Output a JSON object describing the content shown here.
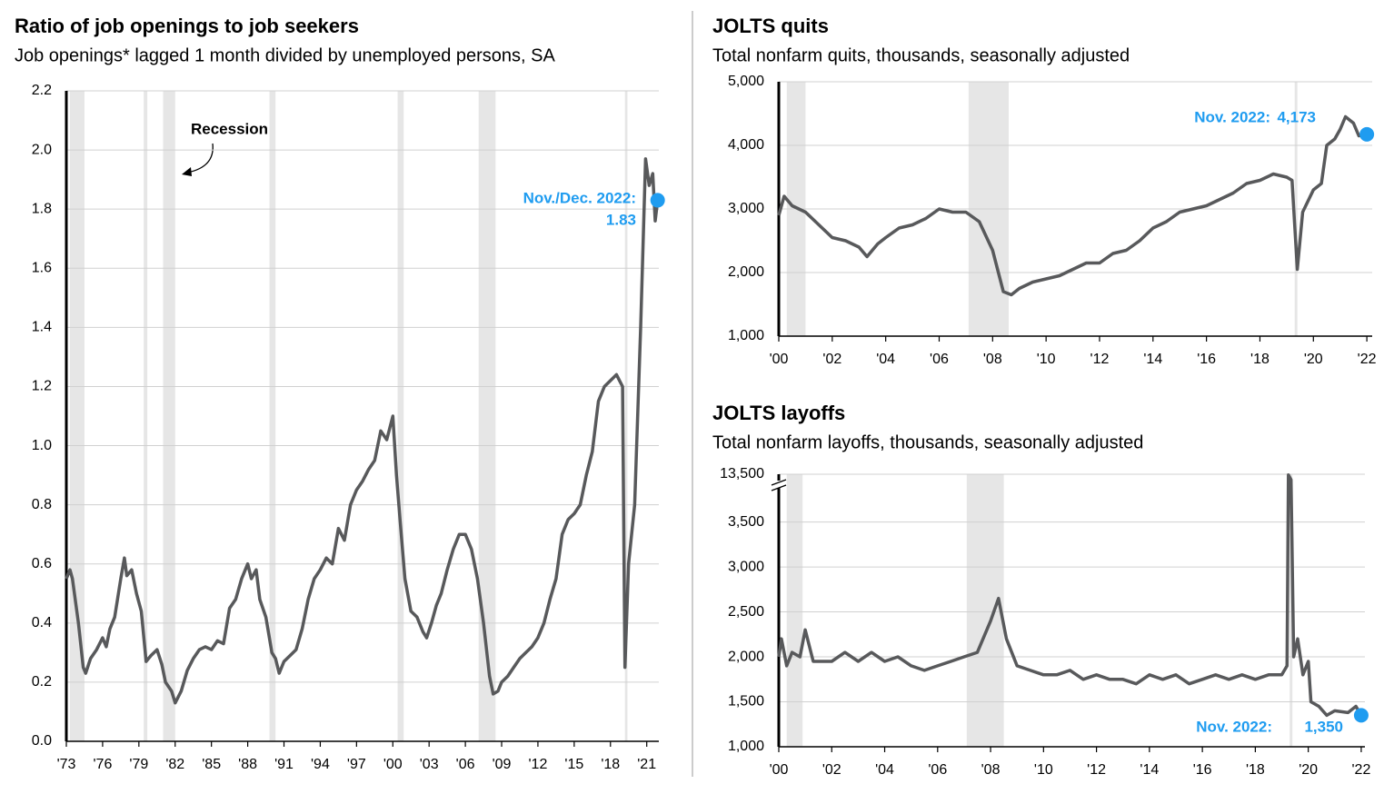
{
  "chart_data": [
    {
      "type": "line",
      "title": "Ratio of job openings to job seekers",
      "subtitle": "Job openings* lagged 1 month divided by unemployed persons, SA",
      "annotation": "Recession",
      "color": "#58595b",
      "recession_color": "#e6e6e6",
      "grid": true,
      "xlim": [
        1973,
        2022
      ],
      "ylim": [
        0,
        2.2
      ],
      "xticks": [
        {
          "value": 1973,
          "label": "'73"
        },
        {
          "value": 1976,
          "label": "'76"
        },
        {
          "value": 1979,
          "label": "'79"
        },
        {
          "value": 1982,
          "label": "'82"
        },
        {
          "value": 1985,
          "label": "'85"
        },
        {
          "value": 1988,
          "label": "'88"
        },
        {
          "value": 1991,
          "label": "'91"
        },
        {
          "value": 1994,
          "label": "'94"
        },
        {
          "value": 1997,
          "label": "'97"
        },
        {
          "value": 2000,
          "label": "'00"
        },
        {
          "value": 2003,
          "label": "'03"
        },
        {
          "value": 2006,
          "label": "'06"
        },
        {
          "value": 2009,
          "label": "'09"
        },
        {
          "value": 2012,
          "label": "'12"
        },
        {
          "value": 2015,
          "label": "'15"
        },
        {
          "value": 2018,
          "label": "'18"
        },
        {
          "value": 2021,
          "label": "'21"
        }
      ],
      "yticks": [
        {
          "value": 0,
          "label": "0.0"
        },
        0.2,
        0.4,
        0.6,
        0.8,
        {
          "value": 1,
          "label": "1.0"
        },
        1.2,
        1.4,
        1.6,
        1.8,
        {
          "value": 2,
          "label": "2.0"
        },
        2.2
      ],
      "recessions": [
        [
          1973.3,
          1974.5
        ],
        [
          1979.4,
          1979.7
        ],
        [
          1981.0,
          1982.0
        ],
        [
          1989.8,
          1990.3
        ],
        [
          2000.4,
          2000.9
        ],
        [
          2007.1,
          2008.5
        ],
        [
          2019.2,
          2019.4
        ]
      ],
      "x": [
        1973.0,
        1973.3,
        1973.5,
        1974.0,
        1974.4,
        1974.6,
        1975.0,
        1975.5,
        1976.0,
        1976.3,
        1976.6,
        1977.0,
        1977.5,
        1977.8,
        1978.0,
        1978.4,
        1978.8,
        1979.2,
        1979.6,
        1980.0,
        1980.5,
        1980.9,
        1981.2,
        1981.7,
        1982.0,
        1982.5,
        1983.0,
        1983.5,
        1984.0,
        1984.5,
        1985.0,
        1985.5,
        1986.0,
        1986.5,
        1987.0,
        1987.5,
        1988.0,
        1988.3,
        1988.7,
        1989.0,
        1989.5,
        1990.0,
        1990.3,
        1990.6,
        1991.0,
        1991.5,
        1992.0,
        1992.5,
        1993.0,
        1993.5,
        1994.0,
        1994.5,
        1995.0,
        1995.5,
        1996.0,
        1996.5,
        1997.0,
        1997.5,
        1998.0,
        1998.5,
        1999.0,
        1999.5,
        2000.0,
        2000.3,
        2000.6,
        2001.0,
        2001.5,
        2002.0,
        2002.5,
        2002.8,
        2003.2,
        2003.6,
        2004.0,
        2004.5,
        2005.0,
        2005.5,
        2006.0,
        2006.5,
        2007.0,
        2007.5,
        2008.0,
        2008.3,
        2008.7,
        2009.0,
        2009.5,
        2010.0,
        2010.5,
        2011.0,
        2011.5,
        2012.0,
        2012.5,
        2013.0,
        2013.5,
        2014.0,
        2014.5,
        2015.0,
        2015.5,
        2016.0,
        2016.5,
        2017.0,
        2017.5,
        2018.0,
        2018.5,
        2019.0,
        2019.2,
        2019.5,
        2020.0,
        2020.5,
        2020.9,
        2021.2,
        2021.5,
        2021.7,
        2021.9
      ],
      "values": [
        0.55,
        0.58,
        0.55,
        0.4,
        0.25,
        0.23,
        0.28,
        0.31,
        0.35,
        0.32,
        0.38,
        0.42,
        0.55,
        0.62,
        0.56,
        0.58,
        0.5,
        0.44,
        0.27,
        0.29,
        0.31,
        0.26,
        0.2,
        0.17,
        0.13,
        0.17,
        0.24,
        0.28,
        0.31,
        0.32,
        0.31,
        0.34,
        0.33,
        0.45,
        0.48,
        0.55,
        0.6,
        0.55,
        0.58,
        0.48,
        0.42,
        0.3,
        0.28,
        0.23,
        0.27,
        0.29,
        0.31,
        0.38,
        0.48,
        0.55,
        0.58,
        0.62,
        0.6,
        0.72,
        0.68,
        0.8,
        0.85,
        0.88,
        0.92,
        0.95,
        1.05,
        1.02,
        1.1,
        0.9,
        0.75,
        0.55,
        0.44,
        0.42,
        0.37,
        0.35,
        0.4,
        0.46,
        0.5,
        0.58,
        0.65,
        0.7,
        0.7,
        0.65,
        0.55,
        0.4,
        0.22,
        0.16,
        0.17,
        0.2,
        0.22,
        0.25,
        0.28,
        0.3,
        0.32,
        0.35,
        0.4,
        0.48,
        0.55,
        0.7,
        0.75,
        0.77,
        0.8,
        0.9,
        0.98,
        1.15,
        1.2,
        1.22,
        1.24,
        1.2,
        0.25,
        0.6,
        0.8,
        1.4,
        1.97,
        1.88,
        1.92,
        1.76,
        1.83
      ],
      "end_point": {
        "label": "Nov./Dec. 2022:",
        "value": 1.83,
        "color": "#1f9cf0"
      }
    },
    {
      "type": "line",
      "title": "JOLTS quits",
      "subtitle": "Total nonfarm quits, thousands, seasonally adjusted",
      "color": "#58595b",
      "recession_color": "#e6e6e6",
      "grid": true,
      "xlim": [
        2000,
        2022.2
      ],
      "ylim": [
        1000,
        5000
      ],
      "xticks": [
        {
          "value": 2000,
          "label": "'00"
        },
        {
          "value": 2002,
          "label": "'02"
        },
        {
          "value": 2004,
          "label": "'04"
        },
        {
          "value": 2006,
          "label": "'06"
        },
        {
          "value": 2008,
          "label": "'08"
        },
        {
          "value": 2010,
          "label": "'10"
        },
        {
          "value": 2012,
          "label": "'12"
        },
        {
          "value": 2014,
          "label": "'14"
        },
        {
          "value": 2016,
          "label": "'16"
        },
        {
          "value": 2018,
          "label": "'18"
        },
        {
          "value": 2020,
          "label": "'20"
        },
        {
          "value": 2022,
          "label": "'22"
        }
      ],
      "yticks": [
        {
          "value": 1000,
          "label": "1,000"
        },
        {
          "value": 2000,
          "label": "2,000"
        },
        {
          "value": 3000,
          "label": "3,000"
        },
        {
          "value": 4000,
          "label": "4,000"
        },
        {
          "value": 5000,
          "label": "5,000"
        }
      ],
      "recessions": [
        [
          2000.3,
          2001.0
        ],
        [
          2007.1,
          2008.6
        ],
        [
          2019.3,
          2019.4
        ]
      ],
      "x": [
        2000.0,
        2000.2,
        2000.5,
        2001.0,
        2001.5,
        2002.0,
        2002.5,
        2003.0,
        2003.3,
        2003.7,
        2004.0,
        2004.5,
        2005.0,
        2005.5,
        2006.0,
        2006.5,
        2007.0,
        2007.5,
        2008.0,
        2008.4,
        2008.7,
        2009.0,
        2009.5,
        2010.0,
        2010.5,
        2011.0,
        2011.5,
        2012.0,
        2012.5,
        2013.0,
        2013.5,
        2014.0,
        2014.5,
        2015.0,
        2015.5,
        2016.0,
        2016.5,
        2017.0,
        2017.5,
        2018.0,
        2018.5,
        2019.0,
        2019.2,
        2019.4,
        2019.6,
        2020.0,
        2020.3,
        2020.5,
        2020.8,
        2021.0,
        2021.2,
        2021.5,
        2021.7,
        2022.0
      ],
      "values": [
        2900,
        3200,
        3050,
        2950,
        2750,
        2550,
        2500,
        2400,
        2250,
        2450,
        2550,
        2700,
        2750,
        2850,
        3000,
        2950,
        2950,
        2800,
        2350,
        1700,
        1650,
        1750,
        1850,
        1900,
        1950,
        2050,
        2150,
        2150,
        2300,
        2350,
        2500,
        2700,
        2800,
        2950,
        3000,
        3050,
        3150,
        3250,
        3400,
        3450,
        3550,
        3500,
        3450,
        2050,
        2950,
        3300,
        3400,
        4000,
        4100,
        4250,
        4450,
        4350,
        4150,
        4173
      ],
      "end_point": {
        "label": "Nov. 2022:",
        "value": 4173,
        "value_label": "4,173",
        "color": "#1f9cf0"
      }
    },
    {
      "type": "line",
      "title": "JOLTS layoffs",
      "subtitle": "Total nonfarm layoffs, thousands, seasonally adjusted",
      "color": "#58595b",
      "recession_color": "#e6e6e6",
      "grid": true,
      "xlim": [
        2000,
        2022.14
      ],
      "ylim": [
        1000,
        13500
      ],
      "axis_break": 3900,
      "xticks": [
        {
          "value": 2000,
          "label": "'00"
        },
        {
          "value": 2002,
          "label": "'02"
        },
        {
          "value": 2004,
          "label": "'04"
        },
        {
          "value": 2006,
          "label": "'06"
        },
        {
          "value": 2008,
          "label": "'08"
        },
        {
          "value": 2010,
          "label": "'10"
        },
        {
          "value": 2012,
          "label": "'12"
        },
        {
          "value": 2014,
          "label": "'14"
        },
        {
          "value": 2016,
          "label": "'16"
        },
        {
          "value": 2018,
          "label": "'18"
        },
        {
          "value": 2020,
          "label": "'20"
        },
        {
          "value": 2022,
          "label": "'22"
        }
      ],
      "yticks": [
        {
          "value": 1000,
          "label": "1,000"
        },
        {
          "value": 1500,
          "label": "1,500"
        },
        {
          "value": 2000,
          "label": "2,000"
        },
        {
          "value": 2500,
          "label": "2,500"
        },
        {
          "value": 3000,
          "label": "3,000"
        },
        {
          "value": 3500,
          "label": "3,500"
        },
        {
          "value": 13500,
          "label": "13,500"
        }
      ],
      "recessions": [
        [
          2000.3,
          2000.9
        ],
        [
          2007.1,
          2008.5
        ],
        [
          2019.3,
          2019.4
        ]
      ],
      "x": [
        2000.0,
        2000.1,
        2000.3,
        2000.5,
        2000.8,
        2001.0,
        2001.3,
        2002.0,
        2002.5,
        2003.0,
        2003.5,
        2004.0,
        2004.5,
        2005.0,
        2005.5,
        2006.0,
        2006.5,
        2007.0,
        2007.5,
        2008.0,
        2008.3,
        2008.6,
        2009.0,
        2009.5,
        2010.0,
        2010.5,
        2011.0,
        2011.5,
        2012.0,
        2012.5,
        2013.0,
        2013.5,
        2014.0,
        2014.5,
        2015.0,
        2015.5,
        2016.0,
        2016.5,
        2017.0,
        2017.5,
        2018.0,
        2018.5,
        2019.0,
        2019.2,
        2019.25,
        2019.35,
        2019.45,
        2019.6,
        2019.8,
        2020.0,
        2020.1,
        2020.4,
        2020.7,
        2021.0,
        2021.5,
        2021.8,
        2022.0
      ],
      "values": [
        2000,
        2200,
        1900,
        2050,
        2000,
        2300,
        1950,
        1950,
        2050,
        1950,
        2050,
        1950,
        2000,
        1900,
        1850,
        1900,
        1950,
        2000,
        2050,
        2400,
        2650,
        2200,
        1900,
        1850,
        1800,
        1800,
        1850,
        1750,
        1800,
        1750,
        1750,
        1700,
        1800,
        1750,
        1800,
        1700,
        1750,
        1800,
        1750,
        1800,
        1750,
        1800,
        1800,
        1900,
        13000,
        9000,
        2000,
        2200,
        1800,
        1950,
        1500,
        1450,
        1350,
        1400,
        1380,
        1450,
        1350
      ],
      "end_point": {
        "label": "Nov. 2022:",
        "value": 1350,
        "value_label": "1,350",
        "color": "#1f9cf0"
      }
    }
  ]
}
